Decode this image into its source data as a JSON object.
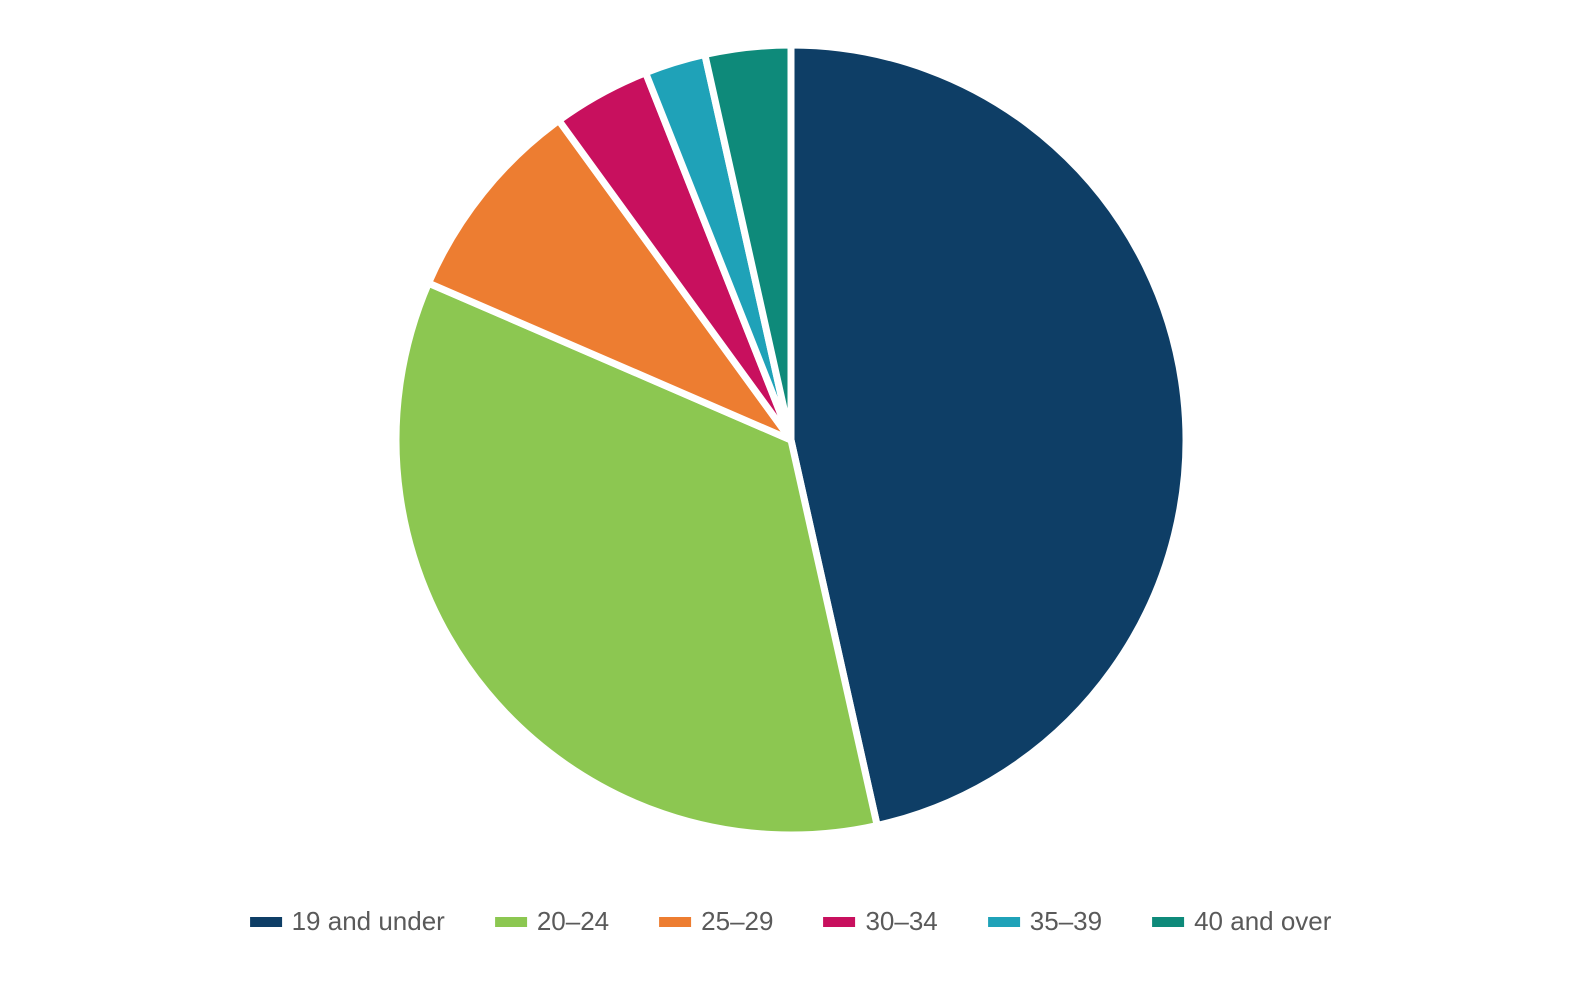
{
  "chart": {
    "type": "pie",
    "background_color": "#ffffff",
    "radius": 395,
    "stroke_color": "#ffffff",
    "stroke_width": 7,
    "start_angle_deg": -90,
    "slices": [
      {
        "label": "19 and under",
        "value": 46.5,
        "color": "#0e3e66"
      },
      {
        "label": "20–24",
        "value": 35.0,
        "color": "#8cc751"
      },
      {
        "label": "25–29",
        "value": 8.5,
        "color": "#ed7d31"
      },
      {
        "label": "30–34",
        "value": 4.0,
        "color": "#c8105e"
      },
      {
        "label": "35–39",
        "value": 2.5,
        "color": "#1fa2b8"
      },
      {
        "label": "40 and over",
        "value": 3.5,
        "color": "#0e8a7a"
      }
    ],
    "legend": {
      "position": "bottom",
      "label_fontsize": 26,
      "label_color": "#5a5a5a",
      "swatch_width": 32,
      "swatch_height": 10,
      "item_gap": 50
    }
  }
}
